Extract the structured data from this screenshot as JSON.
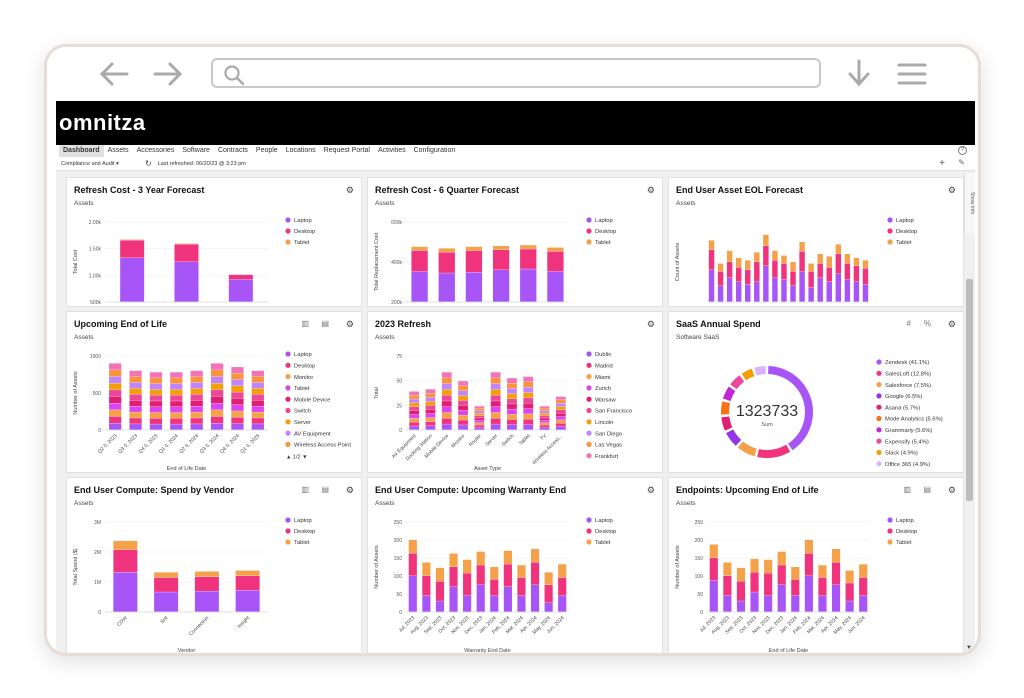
{
  "app": {
    "logo": "omnitza",
    "header_right": "",
    "nav": [
      "Dashboard",
      "Assets",
      "Accessories",
      "Software",
      "Contracts",
      "People",
      "Locations",
      "Request Portal",
      "Activities",
      "Configuration"
    ],
    "dashboard_select": "Compliance and Audit",
    "last_refreshed": "Last refreshed: 06/20/23 @ 3:23 pm",
    "side_tab": "Show Info",
    "colors": {
      "purple": "#a855f7",
      "pink": "#f0337d",
      "orange": "#f4a14a",
      "accent": "#7c3aed"
    }
  },
  "cards": [
    {
      "title": "Refresh Cost - 3 Year Forecast",
      "sub": "Assets",
      "chart_data": {
        "type": "bar",
        "stacked": true,
        "ylabel": "Total Cost",
        "yticks": [
          "2.00k",
          "1.50k",
          "1.00k",
          "500k"
        ],
        "categories": [
          "",
          "",
          ""
        ],
        "series": [
          {
            "name": "Laptop",
            "color": "#a855f7",
            "values": [
              0.55,
              0.5,
              0.28
            ]
          },
          {
            "name": "Desktop",
            "color": "#f0337d",
            "values": [
              0.22,
              0.22,
              0.06
            ]
          },
          {
            "name": "Tablet",
            "color": "#f4a14a",
            "values": [
              0.01,
              0.01,
              0.0
            ]
          }
        ],
        "legend": [
          "Laptop",
          "Desktop",
          "Tablet"
        ]
      }
    },
    {
      "title": "Refresh Cost - 6 Quarter Forecast",
      "sub": "Assets",
      "chart_data": {
        "type": "bar",
        "stacked": true,
        "ylabel": "Total Replacement Cost",
        "yticks": [
          "600k",
          "400k",
          "200k"
        ],
        "series": [
          {
            "name": "Laptop",
            "color": "#a855f7",
            "values": [
              0.38,
              0.36,
              0.37,
              0.4,
              0.41,
              0.38
            ]
          },
          {
            "name": "Desktop",
            "color": "#f0337d",
            "values": [
              0.26,
              0.26,
              0.27,
              0.25,
              0.25,
              0.25
            ]
          },
          {
            "name": "Tablet",
            "color": "#f4a14a",
            "values": [
              0.05,
              0.05,
              0.05,
              0.05,
              0.05,
              0.05
            ]
          }
        ],
        "legend": [
          "Laptop",
          "Desktop",
          "Tablet"
        ]
      }
    },
    {
      "title": "End User Asset EOL Forecast",
      "sub": "Assets",
      "chart_data": {
        "type": "bar",
        "stacked": true,
        "ylabel": "Count of Assets",
        "series": [
          {
            "name": "Laptop",
            "color": "#a855f7",
            "values": [
              0.4,
              0.2,
              0.3,
              0.25,
              0.22,
              0.25,
              0.45,
              0.3,
              0.28,
              0.2,
              0.38,
              0.18,
              0.3,
              0.25,
              0.35,
              0.28,
              0.25,
              0.22
            ]
          },
          {
            "name": "Desktop",
            "color": "#f0337d",
            "values": [
              0.25,
              0.18,
              0.2,
              0.18,
              0.18,
              0.25,
              0.25,
              0.22,
              0.2,
              0.18,
              0.25,
              0.2,
              0.18,
              0.18,
              0.25,
              0.2,
              0.2,
              0.2
            ]
          },
          {
            "name": "Tablet",
            "color": "#f4a14a",
            "values": [
              0.12,
              0.1,
              0.14,
              0.12,
              0.12,
              0.12,
              0.14,
              0.12,
              0.1,
              0.12,
              0.12,
              0.1,
              0.12,
              0.14,
              0.12,
              0.12,
              0.1,
              0.1
            ]
          }
        ],
        "legend": [
          "Laptop",
          "Desktop",
          "Tablet"
        ]
      }
    },
    {
      "title": "Upcoming End of Life",
      "sub": "Assets",
      "chart_data": {
        "type": "bar",
        "stacked": true,
        "ylabel": "Number of Assets",
        "xlabel": "End of Life Date",
        "yticks": [
          "1000",
          "500",
          "0"
        ],
        "categories": [
          "Q2 0, 2023",
          "Q3 0, 2023",
          "Q4 0, 2023",
          "Q1 0, 2024",
          "Q2 0, 2024",
          "Q3 0, 2024",
          "Q4 0, 2024",
          "Q1 0, 2025"
        ],
        "bar_totals": [
          0.9,
          0.8,
          0.78,
          0.78,
          0.8,
          0.9,
          0.85,
          0.8
        ],
        "series_colors": [
          "#a855f7",
          "#f0337d",
          "#f4a14a",
          "#d946ef",
          "#e11d74",
          "#ec4899",
          "#f59e0b",
          "#c084fc",
          "#fb923c",
          "#f472b6"
        ],
        "legend": [
          "Laptop",
          "Desktop",
          "Monitor",
          "Tablet",
          "Mobile Device",
          "Switch",
          "Server",
          "AV Equipment",
          "Wireless Access Point"
        ],
        "legend_page": "1/2"
      }
    },
    {
      "title": "2023 Refresh",
      "sub": "Assets",
      "chart_data": {
        "type": "bar",
        "stacked": true,
        "ylabel": "Total",
        "xlabel": "Asset Type",
        "yticks": [
          "75",
          "50",
          "25",
          "0"
        ],
        "categories": [
          "AV Equipment",
          "Docking Station",
          "Mobile Device",
          "Monitor",
          "Router",
          "Server",
          "Switch",
          "Tablet",
          "TV",
          "Wireless Access..."
        ],
        "bar_totals": [
          0.52,
          0.55,
          0.78,
          0.66,
          0.32,
          0.78,
          0.7,
          0.72,
          0.32,
          0.45
        ],
        "series_colors": [
          "#a855f7",
          "#f0337d",
          "#f4a14a",
          "#d946ef",
          "#e11d74",
          "#ec4899",
          "#f59e0b",
          "#c084fc",
          "#fb923c",
          "#f472b6"
        ],
        "legend": [
          "Dublin",
          "Madrid",
          "Miami",
          "Zurich",
          "Warsaw",
          "San Francisco",
          "Lincoln",
          "San Diego",
          "Las Vegas",
          "Frankfurt"
        ]
      }
    },
    {
      "title": "SaaS Annual Spend",
      "sub": "Software SaaS",
      "chart_data": {
        "type": "pie",
        "donut": true,
        "center_value": "1323733",
        "center_label": "Sum",
        "slices": [
          {
            "label": "Zendesk (41.1%)",
            "value": 41.1,
            "color": "#a855f7"
          },
          {
            "label": "SalesLoft (12.8%)",
            "value": 12.8,
            "color": "#f0337d"
          },
          {
            "label": "Salesforce (7.5%)",
            "value": 7.5,
            "color": "#f4a14a"
          },
          {
            "label": "Google (6.5%)",
            "value": 6.5,
            "color": "#9333ea"
          },
          {
            "label": "Asana (5.7%)",
            "value": 5.7,
            "color": "#e11d74"
          },
          {
            "label": "Mode Analytics (5.6%)",
            "value": 5.6,
            "color": "#f97316"
          },
          {
            "label": "Grammarly (5.6%)",
            "value": 5.6,
            "color": "#c026d3"
          },
          {
            "label": "Expensify (5.4%)",
            "value": 5.4,
            "color": "#ec4899"
          },
          {
            "label": "Slack (4.9%)",
            "value": 4.9,
            "color": "#f59e0b"
          },
          {
            "label": "Office 365 (4.9%)",
            "value": 4.9,
            "color": "#d8b4fe"
          }
        ]
      }
    },
    {
      "title": "End User Compute: Spend by Vendor",
      "sub": "Assets",
      "chart_data": {
        "type": "bar",
        "stacked": true,
        "ylabel": "Total Spend ($)",
        "xlabel": "Vendor",
        "yticks": [
          "3M",
          "2M",
          "1M",
          "0"
        ],
        "categories": [
          "CDW",
          "SHI",
          "Connection",
          "Insight"
        ],
        "series": [
          {
            "name": "Laptop",
            "color": "#a855f7",
            "values": [
              0.44,
              0.22,
              0.23,
              0.24
            ]
          },
          {
            "name": "Desktop",
            "color": "#f0337d",
            "values": [
              0.25,
              0.16,
              0.16,
              0.16
            ]
          },
          {
            "name": "Tablet",
            "color": "#f4a14a",
            "values": [
              0.1,
              0.06,
              0.06,
              0.06
            ]
          }
        ],
        "legend": [
          "Laptop",
          "Desktop",
          "Tablet"
        ]
      }
    },
    {
      "title": "End User Compute: Upcoming Warranty End",
      "sub": "Assets",
      "chart_data": {
        "type": "bar",
        "stacked": true,
        "ylabel": "Number of Assets",
        "xlabel": "Warranty End Date",
        "yticks": [
          "250",
          "200",
          "150",
          "100",
          "50",
          "0"
        ],
        "categories": [
          "Jul, 2023",
          "Aug, 2023",
          "Sep, 2023",
          "Oct, 2023",
          "Nov, 2023",
          "Dec, 2023",
          "Jan, 2024",
          "Feb, 2024",
          "Mar, 2024",
          "Apr, 2024",
          "May, 2024",
          "Jun, 2024"
        ],
        "series": [
          {
            "name": "Laptop",
            "color": "#a855f7",
            "values": [
              0.4,
              0.18,
              0.12,
              0.28,
              0.18,
              0.3,
              0.18,
              0.28,
              0.18,
              0.3,
              0.1,
              0.18
            ]
          },
          {
            "name": "Desktop",
            "color": "#f0337d",
            "values": [
              0.25,
              0.22,
              0.22,
              0.22,
              0.25,
              0.22,
              0.18,
              0.25,
              0.2,
              0.25,
              0.2,
              0.2
            ]
          },
          {
            "name": "Tablet",
            "color": "#f4a14a",
            "values": [
              0.15,
              0.15,
              0.15,
              0.15,
              0.15,
              0.15,
              0.14,
              0.15,
              0.14,
              0.15,
              0.14,
              0.15
            ]
          }
        ],
        "legend": [
          "Laptop",
          "Desktop",
          "Tablet"
        ]
      }
    },
    {
      "title": "Endpoints: Upcoming End of Life",
      "sub": "Assets",
      "chart_data": {
        "type": "bar",
        "stacked": true,
        "ylabel": "Number of Assets",
        "xlabel": "End of Life Date",
        "yticks": [
          "250",
          "200",
          "150",
          "100",
          "50",
          "0"
        ],
        "categories": [
          "Jul, 2023",
          "Aug, 2023",
          "Sep, 2023",
          "Oct, 2023",
          "Nov, 2023",
          "Dec, 2023",
          "Jan, 2024",
          "Feb, 2024",
          "Mar, 2024",
          "Apr, 2024",
          "May, 2024",
          "Jun, 2024"
        ],
        "series": [
          {
            "name": "Laptop",
            "color": "#a855f7",
            "values": [
              0.35,
              0.18,
              0.12,
              0.22,
              0.18,
              0.3,
              0.18,
              0.4,
              0.18,
              0.3,
              0.12,
              0.18
            ]
          },
          {
            "name": "Desktop",
            "color": "#f0337d",
            "values": [
              0.25,
              0.22,
              0.22,
              0.22,
              0.25,
              0.22,
              0.18,
              0.25,
              0.2,
              0.25,
              0.2,
              0.2
            ]
          },
          {
            "name": "Tablet",
            "color": "#f4a14a",
            "values": [
              0.15,
              0.15,
              0.15,
              0.15,
              0.15,
              0.15,
              0.14,
              0.15,
              0.14,
              0.15,
              0.14,
              0.15
            ]
          }
        ],
        "legend": [
          "Laptop",
          "Desktop",
          "Tablet"
        ]
      }
    }
  ]
}
